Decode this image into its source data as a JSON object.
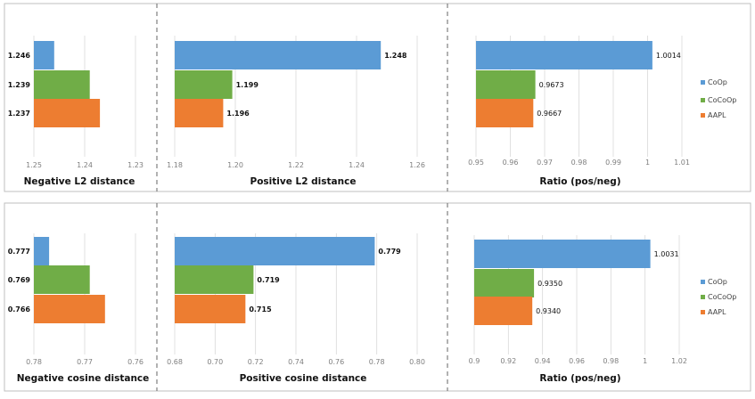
{
  "series": [
    {
      "name": "CoOp",
      "color": "#5b9bd5"
    },
    {
      "name": "CoCoOp",
      "color": "#70ad47"
    },
    {
      "name": "AAPL",
      "color": "#ed7d31"
    }
  ],
  "chart_data": [
    {
      "type": "bar",
      "orientation": "horizontal",
      "reversed": true,
      "title": "Negative L2 distance",
      "categories": [
        "CoOp",
        "CoCoOp",
        "AAPL"
      ],
      "values": [
        1.246,
        1.239,
        1.237
      ],
      "value_labels": [
        "1.246",
        "1.239",
        "1.237"
      ],
      "xlim": [
        1.25,
        1.23
      ],
      "ticks": [
        1.25,
        1.24,
        1.23
      ],
      "tick_labels": [
        "1.25",
        "1.24",
        "1.23"
      ],
      "grid": true
    },
    {
      "type": "bar",
      "orientation": "horizontal",
      "title": "Positive L2 distance",
      "categories": [
        "CoOp",
        "CoCoOp",
        "AAPL"
      ],
      "values": [
        1.248,
        1.199,
        1.196
      ],
      "value_labels": [
        "1.248",
        "1.199",
        "1.196"
      ],
      "xlim": [
        1.18,
        1.26
      ],
      "ticks": [
        1.18,
        1.2,
        1.22,
        1.24,
        1.26
      ],
      "tick_labels": [
        "1.18",
        "1.20",
        "1.22",
        "1.24",
        "1.26"
      ],
      "grid": true
    },
    {
      "type": "bar",
      "orientation": "horizontal",
      "title": "Ratio (pos/neg)",
      "categories": [
        "CoOp",
        "CoCoOp",
        "AAPL"
      ],
      "values": [
        1.0014,
        0.9673,
        0.9667
      ],
      "value_labels": [
        "1.0014",
        "0.9673",
        "0.9667"
      ],
      "xlim": [
        0.95,
        1.01
      ],
      "ticks": [
        0.95,
        0.96,
        0.97,
        0.98,
        0.99,
        1.0,
        1.01
      ],
      "tick_labels": [
        "0.95",
        "0.96",
        "0.97",
        "0.98",
        "0.99",
        "1",
        "1.01"
      ],
      "grid": true
    },
    {
      "type": "bar",
      "orientation": "horizontal",
      "reversed": true,
      "title": "Negative cosine distance",
      "categories": [
        "CoOp",
        "CoCoOp",
        "AAPL"
      ],
      "values": [
        0.777,
        0.769,
        0.766
      ],
      "value_labels": [
        "0.777",
        "0.769",
        "0.766"
      ],
      "xlim": [
        0.78,
        0.76
      ],
      "ticks": [
        0.78,
        0.77,
        0.76
      ],
      "tick_labels": [
        "0.78",
        "0.77",
        "0.76"
      ],
      "grid": true
    },
    {
      "type": "bar",
      "orientation": "horizontal",
      "title": "Positive cosine distance",
      "categories": [
        "CoOp",
        "CoCoOp",
        "AAPL"
      ],
      "values": [
        0.779,
        0.719,
        0.715
      ],
      "value_labels": [
        "0.779",
        "0.719",
        "0.715"
      ],
      "xlim": [
        0.68,
        0.8
      ],
      "ticks": [
        0.68,
        0.7,
        0.72,
        0.74,
        0.76,
        0.78,
        0.8
      ],
      "tick_labels": [
        "0.68",
        "0.70",
        "0.72",
        "0.74",
        "0.76",
        "0.78",
        "0.80"
      ],
      "grid": true
    },
    {
      "type": "bar",
      "orientation": "horizontal",
      "title": "Ratio (pos/neg)",
      "categories": [
        "CoOp",
        "CoCoOp",
        "AAPL"
      ],
      "values": [
        1.0031,
        0.935,
        0.934
      ],
      "value_labels": [
        "1.0031",
        "0.9350",
        "0.9340"
      ],
      "xlim": [
        0.9,
        1.02
      ],
      "ticks": [
        0.9,
        0.92,
        0.94,
        0.96,
        0.98,
        1.0,
        1.02
      ],
      "tick_labels": [
        "0.9",
        "0.92",
        "0.94",
        "0.96",
        "0.98",
        "1",
        "1.02"
      ],
      "grid": true
    }
  ]
}
